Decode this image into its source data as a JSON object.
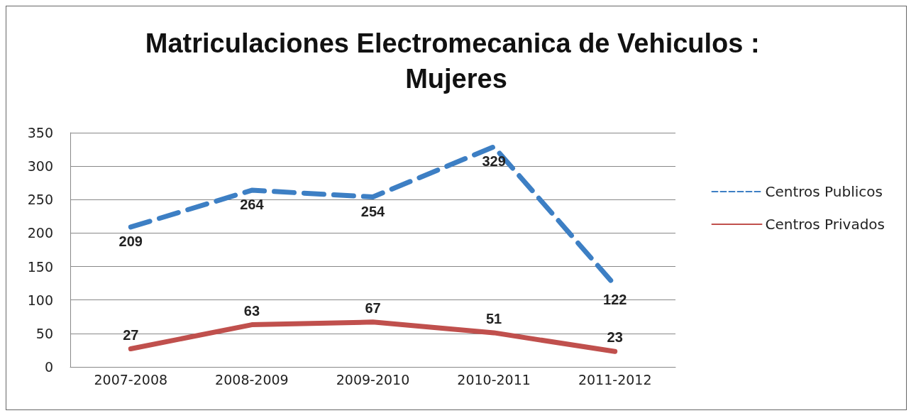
{
  "chart_data": {
    "type": "line",
    "title": "Matriculaciones Electromecanica de Vehiculos : Mujeres",
    "categories": [
      "2007-2008",
      "2008-2009",
      "2009-2010",
      "2010-2011",
      "2011-2012"
    ],
    "series": [
      {
        "name": "Centros Publicos",
        "color": "#3d7fc4",
        "values": [
          209,
          264,
          254,
          329,
          122
        ],
        "line_style": "dashed"
      },
      {
        "name": "Centros Privados",
        "color": "#c0504d",
        "values": [
          27,
          63,
          67,
          51,
          23
        ],
        "line_style": "solid"
      }
    ],
    "ylim": [
      0,
      350
    ],
    "yticks": [
      0,
      50,
      100,
      150,
      200,
      250,
      300,
      350
    ],
    "grid": "y",
    "legend": "right",
    "data_labels": true,
    "marker": "none"
  }
}
